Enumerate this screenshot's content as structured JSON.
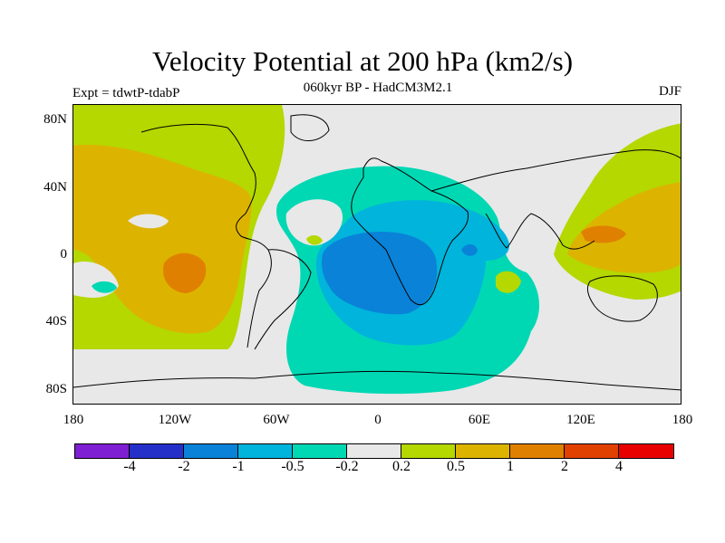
{
  "title": "Velocity Potential at 200 hPa (km2/s)",
  "subtitle": "060kyr BP - HadCM3M2.1",
  "experiment": "Expt = tdwtP-tdabP",
  "season": "DJF",
  "map": {
    "projection": "cylindrical equidistant",
    "background_color": "#e8e8e8",
    "coastlines": "black outlines",
    "lat_labels": [
      "80N",
      "40N",
      "0",
      "40S",
      "80S"
    ],
    "lon_labels": [
      "180",
      "120W",
      "60W",
      "0",
      "60E",
      "120E",
      "180"
    ]
  },
  "colorbar": {
    "colors": [
      "#7f1fd4",
      "#2430c8",
      "#0a82d8",
      "#00b4dc",
      "#00d8b4",
      "#e8e8e8",
      "#b4d800",
      "#dcb400",
      "#e08000",
      "#e04000",
      "#e80000"
    ],
    "labels": [
      "-4",
      "-2",
      "-1",
      "-0.5",
      "-0.2",
      "0.2",
      "0.5",
      "1",
      "2",
      "4"
    ]
  },
  "chart_data": {
    "type": "heatmap",
    "title": "Velocity Potential at 200 hPa (km2/s)",
    "subtitle": "060kyr BP - HadCM3M2.1",
    "units": "km2/s",
    "levels": [
      -4,
      -2,
      -1,
      -0.5,
      -0.2,
      0.2,
      0.5,
      1,
      2,
      4
    ],
    "xlim": [
      -180,
      180
    ],
    "ylim": [
      -90,
      90
    ],
    "regions": [
      {
        "area": "Southern Africa / South Atlantic",
        "range": "-2 to -1",
        "level": "minimum"
      },
      {
        "area": "Africa / Indian Ocean / South Atlantic",
        "range": "-1 to -0.5"
      },
      {
        "area": "Africa / Atlantic / Southern Ocean",
        "range": "-0.5 to -0.2"
      },
      {
        "area": "Eastern Pacific (approx. 0-20S, 120W)",
        "range": "1 to 2",
        "level": "maximum"
      },
      {
        "area": "Western Pacific / Maritime Continent",
        "range": "1 to 2"
      },
      {
        "area": "North Pacific / North America",
        "range": "0.5 to 1"
      },
      {
        "area": "Asia / Western Pacific",
        "range": "0.5 to 1"
      },
      {
        "area": "Pacific margins and high latitudes",
        "range": "0.2 to 0.5"
      }
    ]
  }
}
